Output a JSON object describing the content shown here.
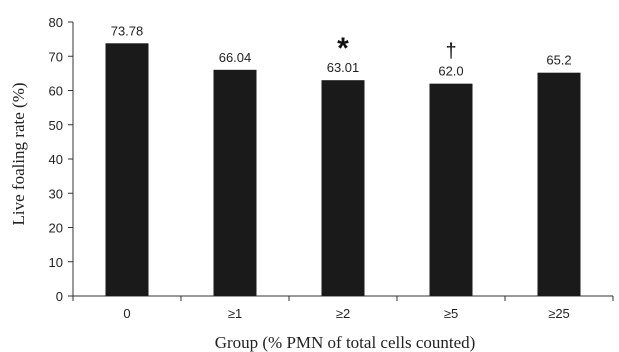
{
  "chart_data": {
    "type": "bar",
    "title": "",
    "xlabel": "Group (% PMN of total cells counted)",
    "ylabel": "Live foaling rate (%)",
    "categories": [
      "0",
      "≥1",
      "≥2",
      "≥5",
      "≥25"
    ],
    "values": [
      73.78,
      66.04,
      63.01,
      62.0,
      65.2
    ],
    "value_labels": [
      "73.78",
      "66.04",
      "63.01",
      "62.0",
      "65.2"
    ],
    "ylim": [
      0,
      80
    ],
    "yticks": [
      "0",
      "10",
      "20",
      "30",
      "40",
      "50",
      "60",
      "70",
      "80"
    ],
    "grid": false,
    "legend": "none",
    "bar_color": "#1a1a1a",
    "annotations": [
      {
        "category_index": 2,
        "text": "*"
      },
      {
        "category_index": 3,
        "text": "†"
      }
    ]
  }
}
